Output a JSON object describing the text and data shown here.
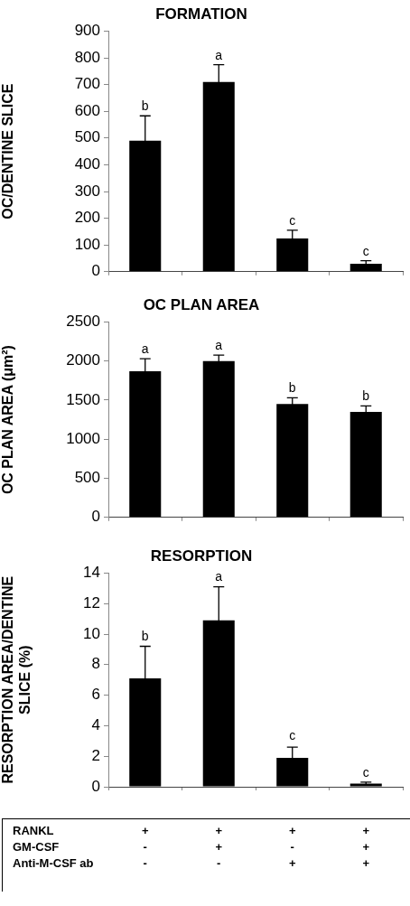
{
  "chart_data": [
    {
      "type": "bar",
      "title": "FORMATION",
      "ylabel": "OC/DENTINE SLICE",
      "categories": [
        null,
        null,
        null,
        null
      ],
      "values": [
        490,
        710,
        124,
        30
      ],
      "errors": [
        93,
        64,
        31,
        11
      ],
      "color": "#000000",
      "ylim": [
        0,
        900
      ],
      "yticks": [
        0,
        100,
        200,
        300,
        400,
        500,
        600,
        700,
        800,
        900
      ],
      "grid": false,
      "legend": false,
      "tick_labels": "y",
      "annotations": [
        {
          "text": "b",
          "y": 583
        },
        {
          "text": "a",
          "y": 774
        },
        {
          "text": "c",
          "y": 155
        },
        {
          "text": "c",
          "y": 41
        }
      ]
    },
    {
      "type": "bar",
      "title": "OC PLAN AREA",
      "ylabel": "OC PLAN AREA (μm²)",
      "categories": [
        null,
        null,
        null,
        null
      ],
      "values": [
        1870,
        2000,
        1450,
        1350
      ],
      "errors": [
        160,
        75,
        80,
        75
      ],
      "color": "#000000",
      "ylim": [
        0,
        2500
      ],
      "yticks": [
        0,
        500,
        1000,
        1500,
        2000,
        2500
      ],
      "grid": false,
      "legend": false,
      "tick_labels": "y",
      "annotations": [
        {
          "text": "a",
          "y": 2030
        },
        {
          "text": "a",
          "y": 2075
        },
        {
          "text": "b",
          "y": 1530
        },
        {
          "text": "b",
          "y": 1425
        }
      ]
    },
    {
      "type": "bar",
      "title": "RESORPTION",
      "ylabel": "RESORPTION AREA/DENTINE SLICE (%)",
      "categories": [
        "+\n-\n-",
        "+\n+\n-",
        "+\n-\n+",
        "+\n+\n+"
      ],
      "values": [
        7.1,
        10.9,
        1.9,
        0.2
      ],
      "errors": [
        2.1,
        2.2,
        0.7,
        0.1
      ],
      "color": "#000000",
      "ylim": [
        0,
        14
      ],
      "yticks": [
        0,
        2,
        4,
        6,
        8,
        10,
        12,
        14
      ],
      "grid": false,
      "legend": false,
      "annotations": [
        "RANKL",
        "GM-CSF",
        "Anti-M-CSF ab",
        {
          "text": "b",
          "y": 9.2
        },
        {
          "text": "a",
          "y": 13.1
        },
        {
          "text": "c",
          "y": 2.7
        },
        {
          "text": "c",
          "y": 0.3
        }
      ]
    }
  ]
}
